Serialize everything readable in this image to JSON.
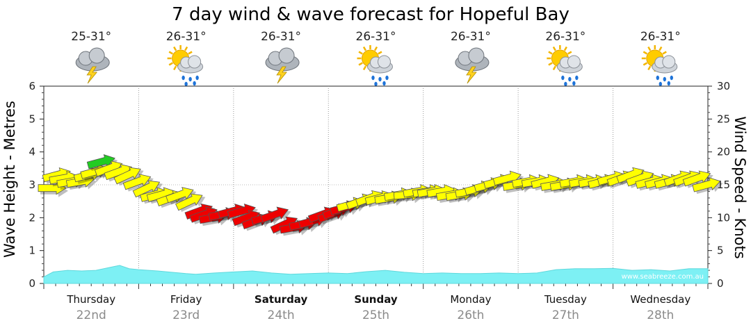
{
  "chart_data": {
    "type": "line",
    "title": "7 day wind & wave forecast for Hopeful Bay",
    "ylabel_left": "Wave Height - Metres",
    "ylabel_right": "Wind Speed - Knots",
    "ylim_left": [
      0,
      6
    ],
    "ylim_right": [
      0,
      30
    ],
    "yticks_left": [
      "0",
      "1",
      "2",
      "3",
      "4",
      "5",
      "6"
    ],
    "yticks_right": [
      "0",
      "5",
      "10",
      "15",
      "20",
      "25",
      "30"
    ],
    "grid": true,
    "days": [
      {
        "name": "Thursday",
        "date": "22nd",
        "bold": false,
        "temp": "25-31°",
        "weather_icon": "storm-cloud-icon"
      },
      {
        "name": "Friday",
        "date": "23rd",
        "bold": false,
        "temp": "26-31°",
        "weather_icon": "sun-rain-icon"
      },
      {
        "name": "Saturday",
        "date": "24th",
        "bold": true,
        "temp": "26-31°",
        "weather_icon": "storm-cloud-icon"
      },
      {
        "name": "Sunday",
        "date": "25th",
        "bold": true,
        "temp": "26-31°",
        "weather_icon": "sun-rain-icon"
      },
      {
        "name": "Monday",
        "date": "26th",
        "bold": false,
        "temp": "26-31°",
        "weather_icon": "storm-cloud-icon"
      },
      {
        "name": "Tuesday",
        "date": "27th",
        "bold": false,
        "temp": "26-31°",
        "weather_icon": "sun-rain-icon"
      },
      {
        "name": "Wednesday",
        "date": "28th",
        "bold": false,
        "temp": "26-31°",
        "weather_icon": "sun-rain-icon"
      }
    ],
    "wave_series": {
      "name": "Wave Height",
      "color": "#7df0f4",
      "x_days": [
        0,
        0.1,
        0.25,
        0.4,
        0.55,
        0.75,
        0.8,
        0.9,
        1.0,
        1.2,
        1.5,
        1.6,
        1.8,
        2.0,
        2.2,
        2.4,
        2.6,
        2.8,
        3.0,
        3.2,
        3.4,
        3.6,
        3.8,
        4.0,
        4.2,
        4.4,
        4.6,
        4.8,
        5.0,
        5.2,
        5.4,
        5.6,
        5.8,
        6.0,
        6.2,
        6.4,
        6.6,
        6.8,
        7.0
      ],
      "values": [
        0.2,
        0.35,
        0.4,
        0.38,
        0.4,
        0.52,
        0.55,
        0.45,
        0.42,
        0.38,
        0.3,
        0.28,
        0.32,
        0.35,
        0.38,
        0.32,
        0.28,
        0.3,
        0.32,
        0.3,
        0.36,
        0.4,
        0.34,
        0.3,
        0.32,
        0.3,
        0.3,
        0.32,
        0.3,
        0.32,
        0.42,
        0.45,
        0.45,
        0.46,
        0.4,
        0.42,
        0.38,
        0.45,
        0.45
      ]
    },
    "wind_series": {
      "name": "Wind Speed",
      "x_days": [
        0,
        0.05,
        0.12,
        0.2,
        0.3,
        0.38,
        0.45,
        0.52,
        0.6,
        0.7,
        0.8,
        0.9,
        1.0,
        1.08,
        1.15,
        1.25,
        1.35,
        1.45,
        1.55,
        1.6,
        1.7,
        1.8,
        1.9,
        2.0,
        2.05,
        2.15,
        2.25,
        2.35,
        2.45,
        2.55,
        2.65,
        2.75,
        2.85,
        2.95,
        3.0,
        3.08,
        3.15,
        3.25,
        3.35,
        3.45,
        3.55,
        3.65,
        3.75,
        3.85,
        3.95,
        4.0,
        4.1,
        4.2,
        4.3,
        4.4,
        4.5,
        4.6,
        4.7,
        4.8,
        4.9,
        5.0,
        5.1,
        5.2,
        5.3,
        5.4,
        5.5,
        5.6,
        5.7,
        5.8,
        5.9,
        6.0,
        6.1,
        6.2,
        6.3,
        6.4,
        6.5,
        6.6,
        6.7,
        6.8,
        6.9
      ],
      "values": [
        14.5,
        16.5,
        16.0,
        15.5,
        15.5,
        16.5,
        17.0,
        18.5,
        17.5,
        17.0,
        16.5,
        15.5,
        14.5,
        13.5,
        13.5,
        13.0,
        13.5,
        12.5,
        11.0,
        10.5,
        10.0,
        10.5,
        11.0,
        11.0,
        10.0,
        9.5,
        10.0,
        10.5,
        9.0,
        8.5,
        9.0,
        9.5,
        10.5,
        10.5,
        11.0,
        11.5,
        12.0,
        12.5,
        13.0,
        13.0,
        13.0,
        13.5,
        13.5,
        14.0,
        14.0,
        14.0,
        14.0,
        13.5,
        13.5,
        14.0,
        14.5,
        15.0,
        15.5,
        16.0,
        15.0,
        15.5,
        15.5,
        15.5,
        15.0,
        15.0,
        15.5,
        15.5,
        15.5,
        15.5,
        16.0,
        16.0,
        16.5,
        16.0,
        15.5,
        15.5,
        15.5,
        16.0,
        16.0,
        16.0,
        15.0
      ],
      "directions_deg": [
        0,
        -15,
        -10,
        -10,
        -10,
        -15,
        -15,
        -15,
        -20,
        -20,
        -25,
        -20,
        -25,
        -15,
        -15,
        -20,
        -20,
        -25,
        -20,
        -20,
        -10,
        -10,
        -15,
        -15,
        -20,
        -20,
        -15,
        -20,
        -25,
        -10,
        -10,
        -15,
        -20,
        -20,
        -20,
        -15,
        -15,
        -20,
        -20,
        -15,
        -10,
        -10,
        -5,
        -10,
        -10,
        -10,
        -10,
        -10,
        -10,
        -10,
        -15,
        -15,
        -15,
        -15,
        -10,
        -10,
        -10,
        -15,
        -10,
        -10,
        -10,
        -10,
        -10,
        -15,
        -15,
        -20,
        -20,
        -20,
        -15,
        -15,
        -15,
        -20,
        -20,
        -20,
        -15
      ],
      "colors_by_speed": {
        "green_above": 18,
        "yellow_from": 12,
        "red_below": 12
      },
      "colors": {
        "green": "#22cc22",
        "yellow": "#ffff00",
        "red": "#ee0000"
      }
    },
    "watermark": "www.seabreeze.com.au"
  }
}
